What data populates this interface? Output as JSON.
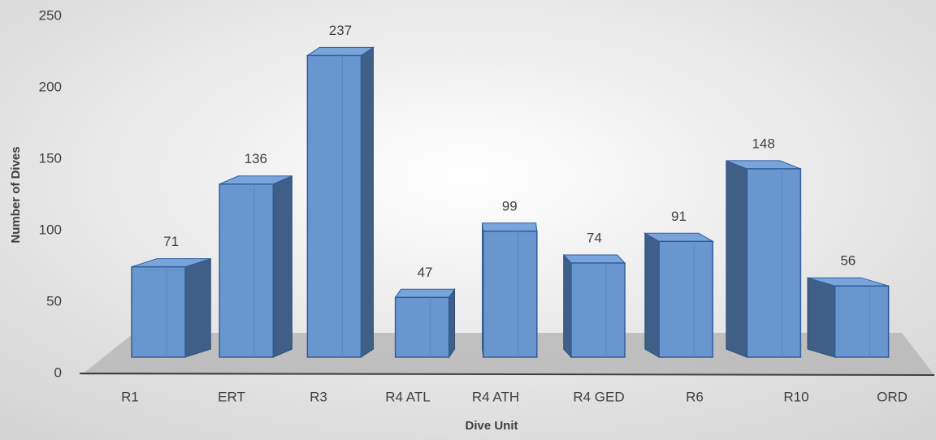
{
  "chart_data": {
    "type": "bar3d",
    "x_label": "Dive Unit",
    "y_label": "Number of Dives",
    "categories": [
      "R1",
      "ERT",
      "R3",
      "R4 ATL",
      "R4 ATH",
      "R4 GED",
      "R6",
      "R10",
      "ORD"
    ],
    "values": [
      71,
      136,
      237,
      47,
      99,
      74,
      91,
      148,
      56
    ],
    "color": "#6a96cf",
    "ylim": [
      0,
      250
    ],
    "yticks": [
      0,
      50,
      100,
      150,
      200,
      250
    ],
    "grid": false
  }
}
